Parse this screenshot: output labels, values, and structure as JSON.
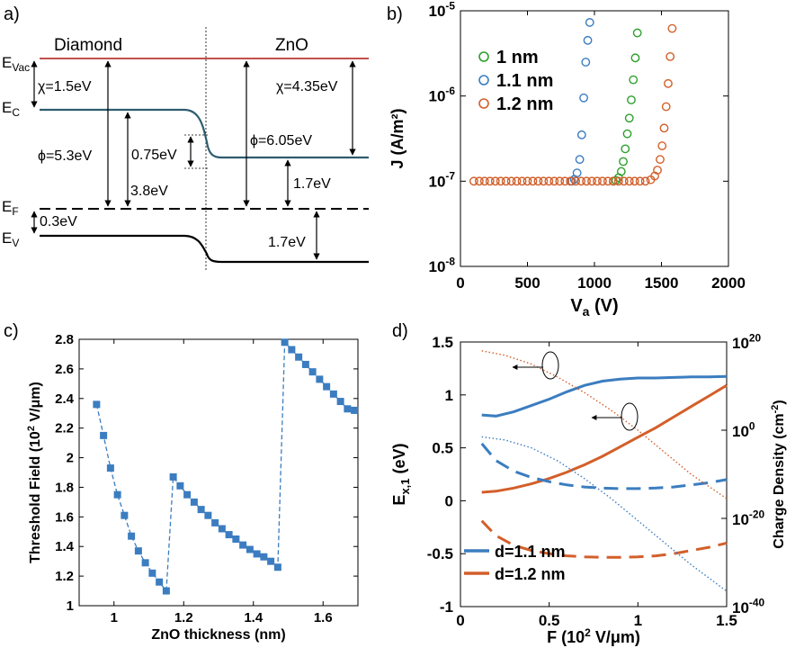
{
  "figure": {
    "panel_labels": [
      "a)",
      "b)",
      "c)",
      "d)"
    ]
  },
  "panel_a": {
    "region_left": "Diamond",
    "region_right": "ZnO",
    "level_labels": {
      "evac": [
        "E",
        "Vac"
      ],
      "ec": [
        "E",
        "C"
      ],
      "ef": [
        "E",
        "F"
      ],
      "ev": [
        "E",
        "V"
      ]
    },
    "annotations": {
      "chi_diamond": "χ=1.5eV",
      "chi_zno": "χ=4.35eV",
      "phi_diamond": "ϕ=5.3eV",
      "phi_zno": "ϕ=6.05eV",
      "band_bending": "0.75eV",
      "ef_to_ec_diamond": "3.8eV",
      "ef_to_ev_diamond": "0.3eV",
      "ef_to_ec_zno": "1.7eV",
      "ef_to_ev_zno": "1.7eV"
    },
    "colors": {
      "vacuum": "#c0504d",
      "conduction": "#2e5c6e",
      "valence": "#000000"
    }
  },
  "chart_data": [
    {
      "panel": "b",
      "type": "scatter",
      "xlabel": {
        "main": "V",
        "sub": "a",
        "unit": " (V)"
      },
      "ylabel": "J (A/m²)",
      "xlim": [
        0,
        2000
      ],
      "xticks": [
        "0",
        "500",
        "1000",
        "1500",
        "2000"
      ],
      "ylim": [
        1e-08,
        1e-05
      ],
      "yscale": "log",
      "yticks": [
        {
          "base": "10",
          "exp": "-8"
        },
        {
          "base": "10",
          "exp": "-7"
        },
        {
          "base": "10",
          "exp": "-6"
        },
        {
          "base": "10",
          "exp": "-5"
        }
      ],
      "legend_position": "top-left",
      "series": [
        {
          "name": "1 nm",
          "color": "#2ca02c",
          "x": [
            1140,
            1160,
            1180,
            1200,
            1215,
            1230,
            1245,
            1260,
            1275,
            1290,
            1305,
            1320
          ],
          "y": [
            1e-07,
            1.02e-07,
            1.1e-07,
            1.3e-07,
            1.7e-07,
            2.4e-07,
            3.6e-07,
            5.5e-07,
            9e-07,
            1.55e-06,
            2.8e-06,
            5.5e-06
          ]
        },
        {
          "name": "1.1 nm",
          "color": "#3b7dc0",
          "x": [
            830,
            850,
            870,
            890,
            905,
            920,
            935,
            950,
            965
          ],
          "y": [
            1e-07,
            1.05e-07,
            1.25e-07,
            1.8e-07,
            3.5e-07,
            9.5e-07,
            2.5e-06,
            4.5e-06,
            7.3e-06
          ]
        },
        {
          "name": "1.2 nm",
          "color": "#d35f2a",
          "x": [
            100,
            140,
            180,
            220,
            260,
            300,
            340,
            380,
            420,
            460,
            500,
            540,
            580,
            620,
            660,
            700,
            740,
            780,
            820,
            860,
            900,
            940,
            980,
            1020,
            1060,
            1100,
            1140,
            1180,
            1220,
            1260,
            1300,
            1340,
            1380,
            1420,
            1450,
            1470,
            1490,
            1505,
            1520,
            1535,
            1550,
            1565,
            1580
          ],
          "y": [
            1e-07,
            1e-07,
            1e-07,
            1e-07,
            1e-07,
            1e-07,
            1e-07,
            1e-07,
            1e-07,
            1e-07,
            1e-07,
            1e-07,
            1e-07,
            1e-07,
            1e-07,
            1e-07,
            1e-07,
            1e-07,
            1e-07,
            1e-07,
            1e-07,
            1e-07,
            1e-07,
            1e-07,
            1e-07,
            1e-07,
            1e-07,
            1e-07,
            1e-07,
            1e-07,
            1e-07,
            1e-07,
            1e-07,
            1.04e-07,
            1.15e-07,
            1.35e-07,
            1.8e-07,
            2.6e-07,
            4.2e-07,
            7.5e-07,
            1.4e-06,
            2.9e-06,
            6.2e-06
          ]
        }
      ]
    },
    {
      "panel": "c",
      "type": "line",
      "xlabel": "ZnO thickness (nm)",
      "ylabel": {
        "main": "Threshold Field (10",
        "sup": "2",
        "tail": " V/μm)"
      },
      "xlim": [
        0.9,
        1.7
      ],
      "xticks": [
        "1",
        "1.2",
        "1.4",
        "1.6"
      ],
      "ylim": [
        1,
        2.8
      ],
      "yticks": [
        "1",
        "1.2",
        "1.4",
        "1.6",
        "1.8",
        "2",
        "2.2",
        "2.4",
        "2.6",
        "2.8"
      ],
      "series": [
        {
          "color": "#3b7dc0",
          "x": [
            0.95,
            0.97,
            0.99,
            1.01,
            1.03,
            1.05,
            1.07,
            1.09,
            1.11,
            1.13,
            1.15,
            1.17,
            1.19,
            1.21,
            1.23,
            1.25,
            1.27,
            1.29,
            1.31,
            1.33,
            1.35,
            1.37,
            1.39,
            1.41,
            1.43,
            1.45,
            1.47,
            1.49,
            1.51,
            1.53,
            1.55,
            1.57,
            1.59,
            1.61,
            1.63,
            1.65,
            1.67,
            1.69
          ],
          "y": [
            2.36,
            2.15,
            1.93,
            1.75,
            1.61,
            1.47,
            1.37,
            1.29,
            1.22,
            1.16,
            1.1,
            1.87,
            1.81,
            1.75,
            1.7,
            1.65,
            1.61,
            1.56,
            1.52,
            1.48,
            1.45,
            1.41,
            1.38,
            1.35,
            1.33,
            1.3,
            1.26,
            2.78,
            2.73,
            2.68,
            2.63,
            2.58,
            2.53,
            2.48,
            2.43,
            2.38,
            2.33,
            2.32
          ]
        }
      ]
    },
    {
      "panel": "d",
      "type": "line",
      "xlabel": {
        "main": "F (10",
        "sup": "2",
        "tail": " V/μm)"
      },
      "ylabel_left": {
        "main": "E",
        "sub": "x,1",
        "tail": " (eV)"
      },
      "ylabel_right": {
        "main": "Charge Density (cm",
        "sup": "-2",
        "tail": ")"
      },
      "xlim": [
        0,
        1.5
      ],
      "xticks": [
        "0",
        "0.5",
        "1",
        "1.5"
      ],
      "ylim_left": [
        -1,
        1.5
      ],
      "yticks_left": [
        "-1",
        "-0.5",
        "0",
        "0.5",
        "1",
        "1.5"
      ],
      "ylim_right_log10": [
        -40,
        20
      ],
      "yticks_right": [
        {
          "base": "10",
          "exp": "20"
        },
        {
          "base": "10",
          "exp": "0"
        },
        {
          "base": "10",
          "exp": "-20"
        },
        {
          "base": "10",
          "exp": "-40"
        }
      ],
      "legend_position": "bottom-left",
      "series": [
        {
          "name": "d=1.1 nm",
          "color": "#3b7dc0",
          "style": "solid",
          "axis": "left",
          "x": [
            0.12,
            0.2,
            0.3,
            0.4,
            0.5,
            0.6,
            0.7,
            0.8,
            0.9,
            1.0,
            1.1,
            1.2,
            1.3,
            1.4,
            1.5
          ],
          "y": [
            0.81,
            0.8,
            0.84,
            0.9,
            0.96,
            1.03,
            1.09,
            1.13,
            1.15,
            1.16,
            1.16,
            1.165,
            1.17,
            1.17,
            1.175
          ]
        },
        {
          "name": "d=1.2 nm",
          "color": "#d35f2a",
          "style": "solid",
          "axis": "left",
          "x": [
            0.12,
            0.2,
            0.3,
            0.4,
            0.5,
            0.6,
            0.7,
            0.8,
            0.9,
            1.0,
            1.1,
            1.2,
            1.3,
            1.4,
            1.5
          ],
          "y": [
            0.08,
            0.09,
            0.12,
            0.16,
            0.21,
            0.27,
            0.34,
            0.42,
            0.51,
            0.6,
            0.69,
            0.79,
            0.89,
            0.99,
            1.09
          ]
        },
        {
          "color": "#3b7dc0",
          "style": "dashed",
          "axis": "left",
          "x": [
            0.12,
            0.2,
            0.3,
            0.4,
            0.5,
            0.6,
            0.7,
            0.8,
            0.9,
            1.0,
            1.1,
            1.2,
            1.3,
            1.4,
            1.5
          ],
          "y": [
            0.54,
            0.38,
            0.28,
            0.22,
            0.18,
            0.15,
            0.13,
            0.12,
            0.115,
            0.115,
            0.12,
            0.13,
            0.15,
            0.17,
            0.2
          ]
        },
        {
          "color": "#d35f2a",
          "style": "dashed",
          "axis": "left",
          "x": [
            0.12,
            0.2,
            0.3,
            0.4,
            0.5,
            0.6,
            0.7,
            0.8,
            0.9,
            1.0,
            1.1,
            1.2,
            1.3,
            1.4,
            1.5
          ],
          "y": [
            -0.19,
            -0.33,
            -0.42,
            -0.47,
            -0.5,
            -0.52,
            -0.53,
            -0.535,
            -0.535,
            -0.53,
            -0.52,
            -0.5,
            -0.47,
            -0.44,
            -0.4
          ]
        },
        {
          "color": "#3b7dc0",
          "style": "dotted",
          "axis": "right",
          "x": [
            0.12,
            0.25,
            0.4,
            0.55,
            0.7,
            0.85,
            1.0,
            1.15,
            1.3,
            1.5
          ],
          "y_log10": [
            -1.5,
            -2.2,
            -4.0,
            -7.0,
            -11.0,
            -15.5,
            -20.5,
            -25.5,
            -30.5,
            -36.5
          ]
        },
        {
          "color": "#d35f2a",
          "style": "dotted",
          "axis": "right",
          "x": [
            0.12,
            0.25,
            0.4,
            0.55,
            0.7,
            0.85,
            1.0,
            1.15,
            1.3,
            1.5
          ],
          "y_log10": [
            18.0,
            17.0,
            15.0,
            12.0,
            8.5,
            4.5,
            0.0,
            -5.0,
            -10.0,
            -15.5
          ]
        }
      ]
    }
  ]
}
